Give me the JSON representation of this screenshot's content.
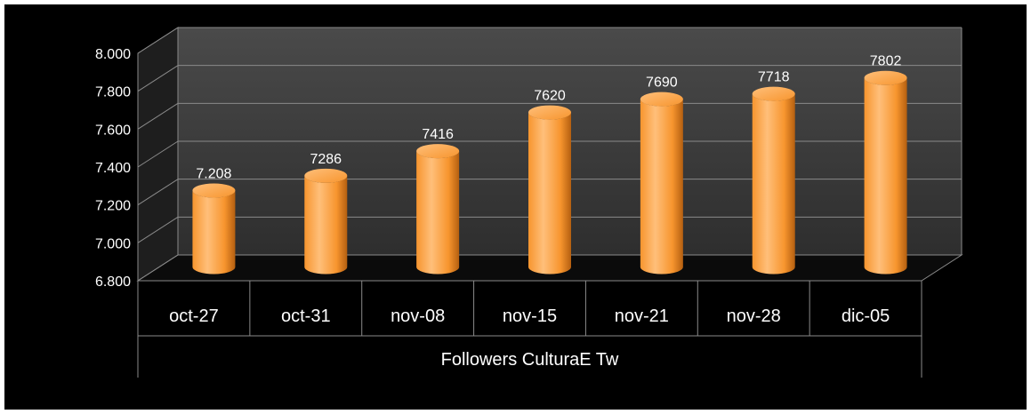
{
  "chart_data": {
    "type": "bar",
    "style": "3d-cylinder",
    "categories": [
      "oct-27",
      "oct-31",
      "nov-08",
      "nov-15",
      "nov-21",
      "nov-28",
      "dic-05"
    ],
    "series": [
      {
        "values": [
          7208,
          7286,
          7416,
          7620,
          7690,
          7718,
          7802
        ],
        "data_labels": [
          "7.208",
          "7286",
          "7416",
          "7620",
          "7690",
          "7718",
          "7802"
        ]
      }
    ],
    "category_group_label": "Followers CulturaE Tw",
    "y_ticks": [
      "6.800",
      "7.000",
      "7.200",
      "7.400",
      "7.600",
      "7.800",
      "8.000"
    ],
    "ylim": [
      6800,
      8000
    ],
    "ystep": 200,
    "grid": true,
    "legend": "none",
    "colors": {
      "background": "#000000",
      "wall": "#3a3a3a",
      "gridline": "#8a8a8a",
      "bar_light": "#ffbf7a",
      "bar_mid": "#f7952e",
      "bar_dark": "#b45f10",
      "text": "#ffffff"
    }
  }
}
